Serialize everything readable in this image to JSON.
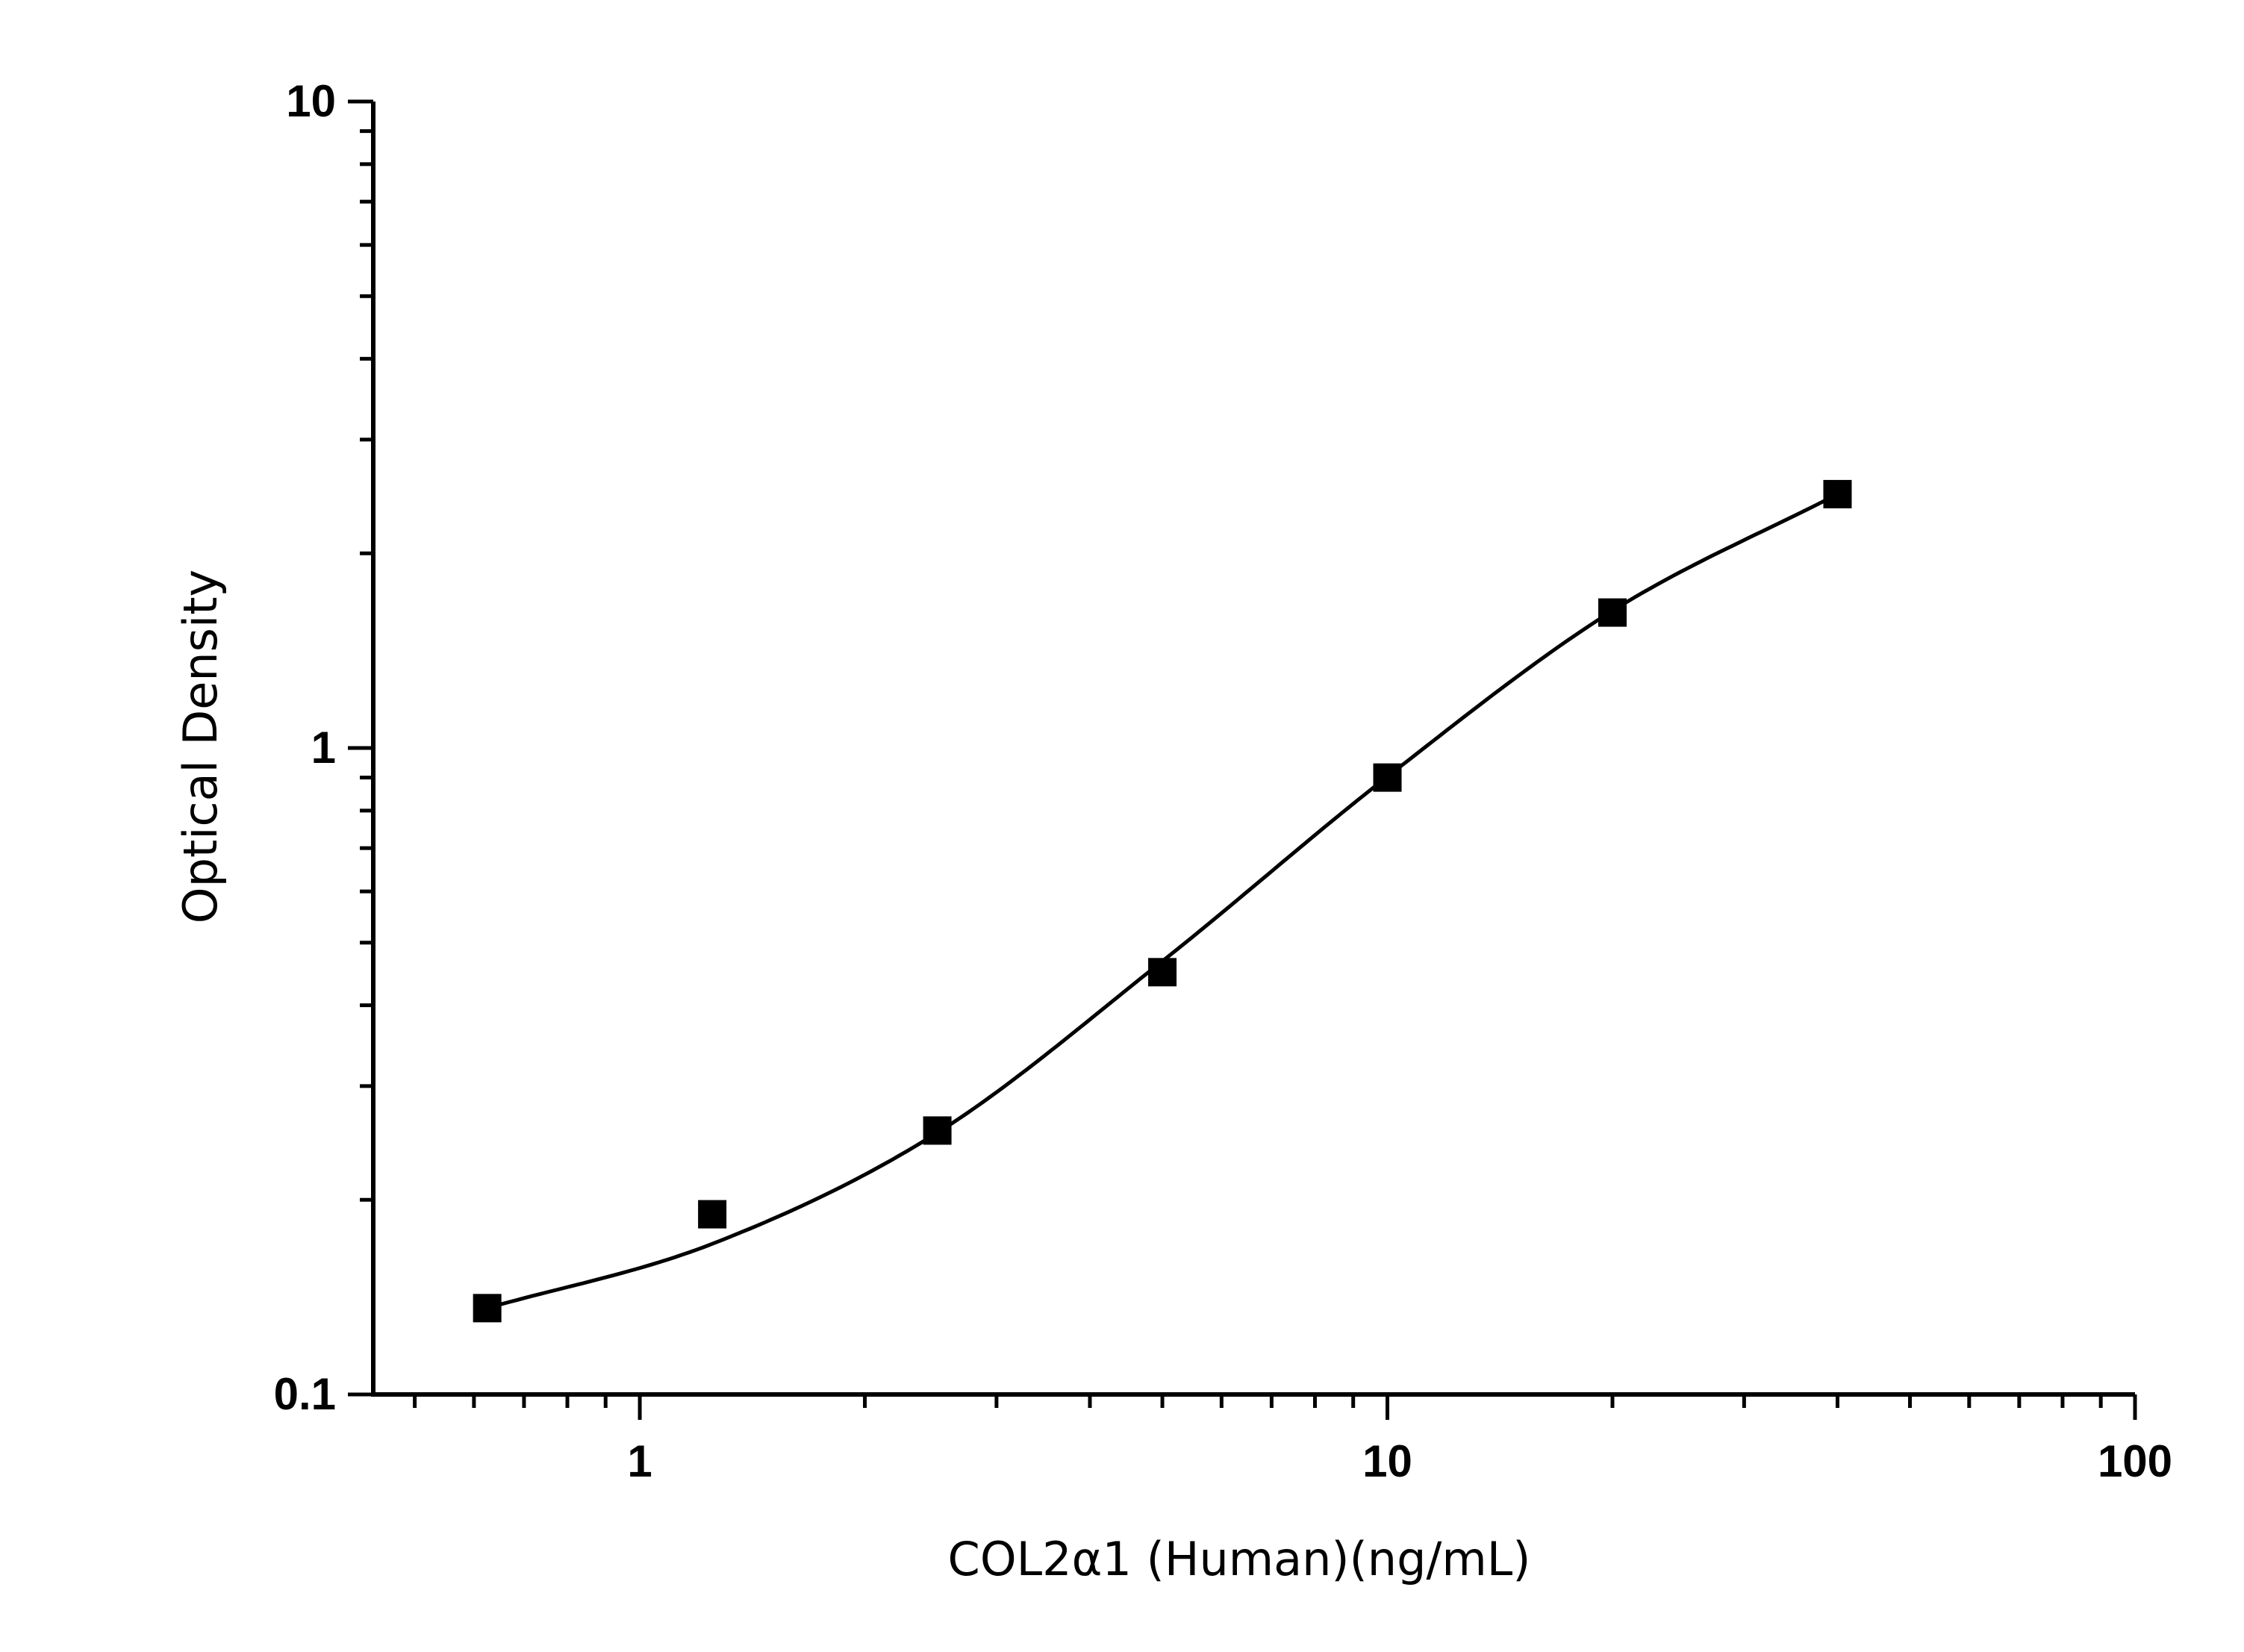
{
  "chart_data": {
    "type": "scatter",
    "title": "",
    "xlabel": "COL2α1 (Human)(ng/mL)",
    "ylabel": "Optical Density",
    "x_scale": "log",
    "y_scale": "log",
    "xlim": [
      0.44,
      100
    ],
    "ylim": [
      0.1,
      10
    ],
    "x_ticks": [
      "1",
      "10",
      "100"
    ],
    "y_ticks": [
      "0.1",
      "1",
      "10"
    ],
    "grid": false,
    "series": [
      {
        "marker": "square",
        "color": "#000000",
        "x": [
          0.625,
          1.25,
          2.5,
          5,
          10,
          20,
          40
        ],
        "y": [
          0.136,
          0.19,
          0.256,
          0.45,
          0.9,
          1.62,
          2.47
        ]
      }
    ],
    "fit_curve": {
      "type": "4PL",
      "color": "#000000",
      "x_range": [
        0.625,
        40
      ],
      "y": [
        0.136,
        0.171,
        0.254,
        0.468,
        0.903,
        1.63,
        2.47
      ]
    }
  }
}
